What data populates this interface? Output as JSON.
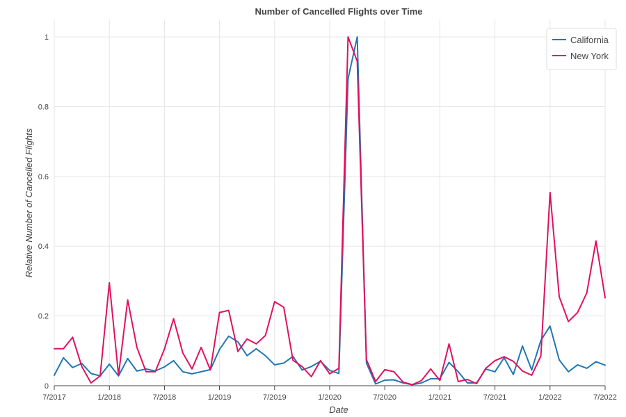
{
  "chart_data": {
    "type": "line",
    "title": "Number of Cancelled Flights over Time",
    "xlabel": "Date",
    "ylabel": "Relative Number of Cancelled Flights",
    "ylim": [
      0,
      1.05
    ],
    "xlim": [
      "2017-07",
      "2022-07"
    ],
    "x_ticks": [
      "7/2017",
      "1/2018",
      "7/2018",
      "1/2019",
      "7/2019",
      "1/2020",
      "7/2020",
      "1/2021",
      "7/2021",
      "1/2022",
      "7/2022"
    ],
    "y_ticks": [
      "0",
      "0.2",
      "0.4",
      "0.6",
      "0.8",
      "1"
    ],
    "y_tick_values": [
      0,
      0.2,
      0.4,
      0.6,
      0.8,
      1.0
    ],
    "grid": true,
    "legend_position": "top-right",
    "x": [
      "2017-07",
      "2017-08",
      "2017-09",
      "2017-10",
      "2017-11",
      "2017-12",
      "2018-01",
      "2018-02",
      "2018-03",
      "2018-04",
      "2018-05",
      "2018-06",
      "2018-07",
      "2018-08",
      "2018-09",
      "2018-10",
      "2018-11",
      "2018-12",
      "2019-01",
      "2019-02",
      "2019-03",
      "2019-04",
      "2019-05",
      "2019-06",
      "2019-07",
      "2019-08",
      "2019-09",
      "2019-10",
      "2019-11",
      "2019-12",
      "2020-01",
      "2020-02",
      "2020-03",
      "2020-04",
      "2020-05",
      "2020-06",
      "2020-07",
      "2020-08",
      "2020-09",
      "2020-10",
      "2020-11",
      "2020-12",
      "2021-01",
      "2021-02",
      "2021-03",
      "2021-04",
      "2021-05",
      "2021-06",
      "2021-07",
      "2021-08",
      "2021-09",
      "2021-10",
      "2021-11",
      "2021-12",
      "2022-01",
      "2022-02",
      "2022-03",
      "2022-04",
      "2022-05",
      "2022-06",
      "2022-07"
    ],
    "series": [
      {
        "name": "California",
        "color": "#1f77b4",
        "values": [
          0.03,
          0.08,
          0.052,
          0.064,
          0.035,
          0.028,
          0.062,
          0.028,
          0.078,
          0.042,
          0.048,
          0.042,
          0.054,
          0.072,
          0.04,
          0.034,
          0.04,
          0.046,
          0.104,
          0.142,
          0.126,
          0.086,
          0.106,
          0.086,
          0.06,
          0.065,
          0.084,
          0.045,
          0.055,
          0.07,
          0.044,
          0.035,
          0.88,
          1.0,
          0.065,
          0.005,
          0.016,
          0.017,
          0.008,
          0.003,
          0.008,
          0.02,
          0.02,
          0.067,
          0.04,
          0.008,
          0.008,
          0.048,
          0.04,
          0.08,
          0.032,
          0.114,
          0.045,
          0.13,
          0.171,
          0.074,
          0.04,
          0.06,
          0.05,
          0.069,
          0.059
        ]
      },
      {
        "name": "New York",
        "color": "#e0115f",
        "values": [
          0.106,
          0.106,
          0.139,
          0.055,
          0.008,
          0.028,
          0.295,
          0.03,
          0.246,
          0.11,
          0.04,
          0.04,
          0.105,
          0.192,
          0.094,
          0.048,
          0.11,
          0.045,
          0.21,
          0.216,
          0.098,
          0.134,
          0.12,
          0.144,
          0.241,
          0.225,
          0.073,
          0.055,
          0.026,
          0.072,
          0.034,
          0.05,
          1.0,
          0.93,
          0.075,
          0.012,
          0.046,
          0.04,
          0.01,
          0.003,
          0.015,
          0.048,
          0.015,
          0.12,
          0.012,
          0.018,
          0.006,
          0.05,
          0.072,
          0.083,
          0.07,
          0.042,
          0.03,
          0.085,
          0.554,
          0.255,
          0.184,
          0.21,
          0.266,
          0.415,
          0.252
        ]
      }
    ]
  }
}
